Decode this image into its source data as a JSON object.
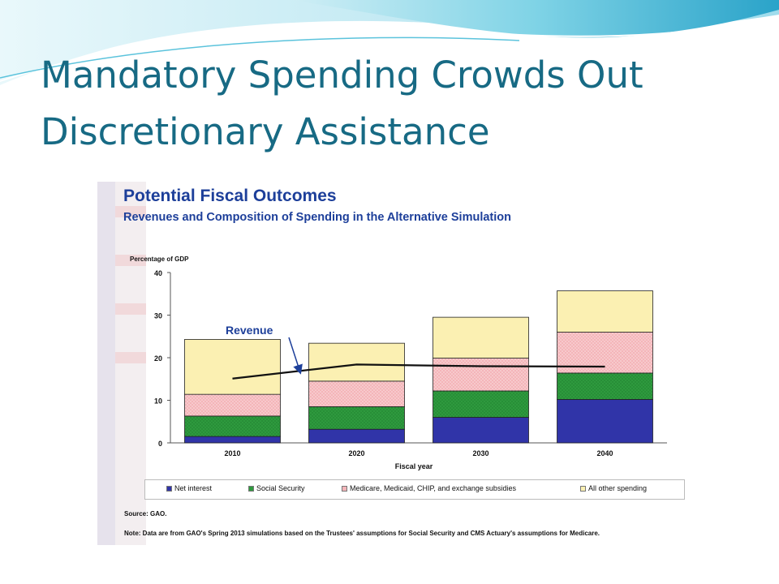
{
  "slide": {
    "title_line1": "Mandatory Spending Crowds Out",
    "title_line2": "Discretionary Assistance",
    "title_color": "#176a84"
  },
  "chart_data": {
    "type": "bar",
    "stacked": true,
    "title": "Potential Fiscal Outcomes",
    "subtitle": "Revenues and Composition of Spending in the Alternative Simulation",
    "ylabel": "Percentage of GDP",
    "xlabel": "Fiscal year",
    "ylim": [
      0,
      40
    ],
    "yticks": [
      0,
      10,
      20,
      30,
      40
    ],
    "categories": [
      "2010",
      "2020",
      "2030",
      "2040"
    ],
    "series": [
      {
        "name": "Net interest",
        "color": "#3034a8",
        "values": [
          1.5,
          3.2,
          6.0,
          10.2
        ]
      },
      {
        "name": "Social Security",
        "color": "#2e9a3e",
        "values": [
          4.8,
          5.3,
          6.2,
          6.2
        ]
      },
      {
        "name": "Medicare, Medicaid, CHIP, and exchange subsidies",
        "color": "#f4b5b9",
        "values": [
          5.1,
          6.0,
          7.7,
          9.6
        ]
      },
      {
        "name": "All other spending",
        "color": "#fbf0b2",
        "values": [
          12.9,
          8.9,
          9.6,
          9.7
        ]
      }
    ],
    "revenue_line": {
      "name": "Revenue",
      "x": [
        "2010",
        "2020",
        "2030",
        "2040"
      ],
      "values": [
        15.1,
        18.4,
        18.0,
        17.9
      ]
    },
    "legend_position": "bottom",
    "source": "Source: GAO.",
    "note": "Note: Data are from GAO's Spring 2013 simulations based on the Trustees' assumptions for Social Security and CMS Actuary's assumptions for Medicare.",
    "chart_title_color": "#1d3f9a"
  }
}
